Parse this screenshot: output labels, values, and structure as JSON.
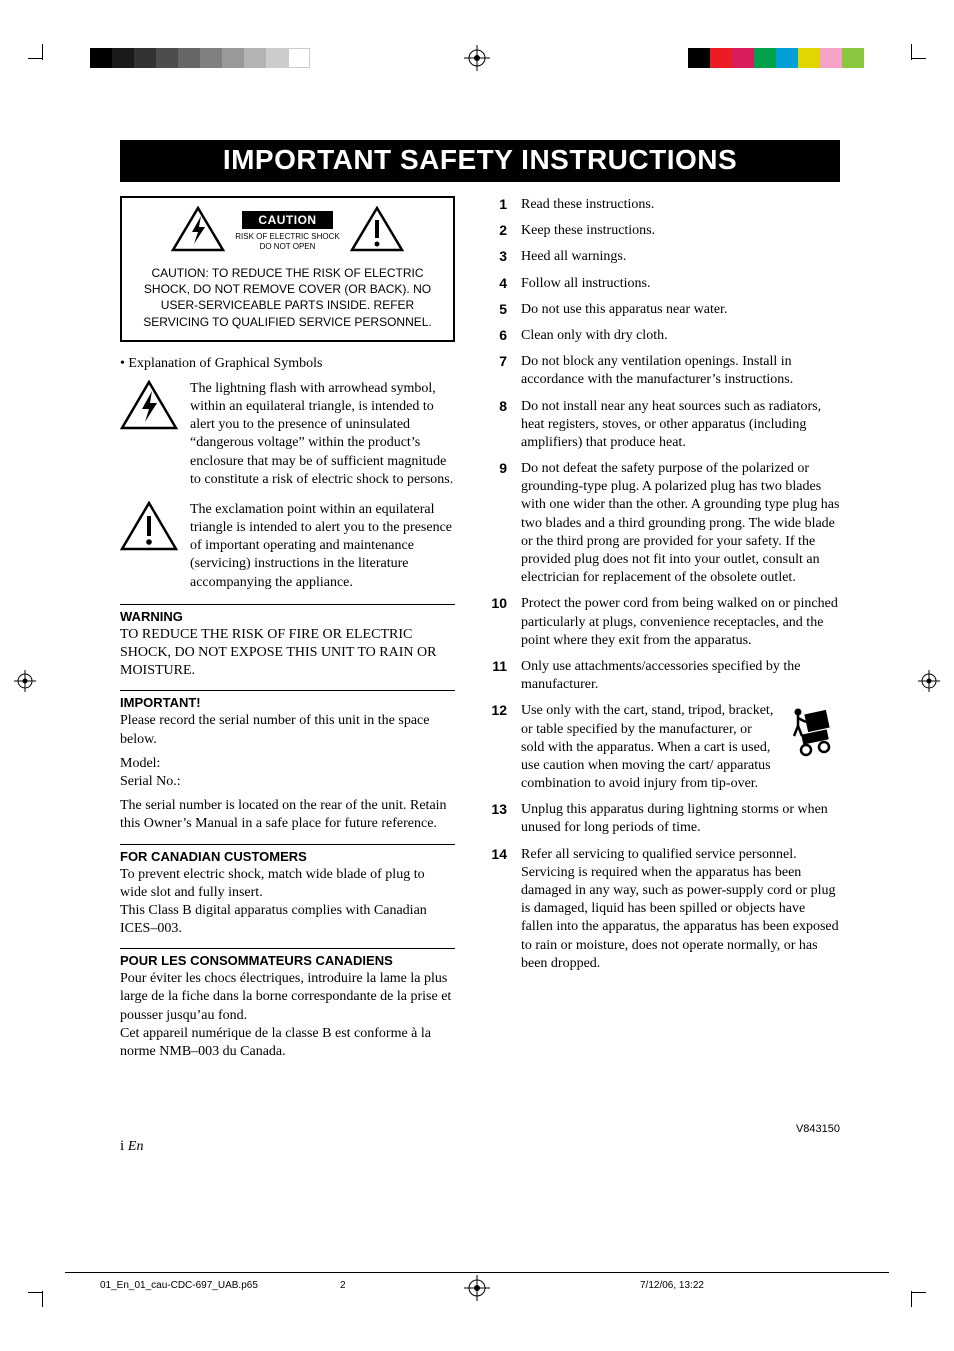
{
  "colorbars": {
    "left_gray": [
      "#000000",
      "#1a1a1a",
      "#333333",
      "#4d4d4d",
      "#666666",
      "#808080",
      "#999999",
      "#b3b3b3",
      "#cccccc",
      "#ffffff"
    ],
    "right_cmyk": [
      "#000000",
      "#ec1c24",
      "#d91c5c",
      "#00a14b",
      "#009fd6",
      "#e2d600",
      "#f5a1c8",
      "#8bc63f"
    ]
  },
  "banner": "IMPORTANT SAFETY INSTRUCTIONS",
  "caution_box": {
    "label": "CAUTION",
    "sub1": "RISK OF ELECTRIC SHOCK",
    "sub2": "DO NOT OPEN",
    "text": "CAUTION:  TO REDUCE THE RISK OF ELECTRIC SHOCK, DO NOT REMOVE COVER (OR BACK). NO USER-SERVICEABLE PARTS INSIDE. REFER SERVICING TO QUALIFIED SERVICE PERSONNEL."
  },
  "explanation_heading": "•  Explanation of Graphical Symbols",
  "symbol_lightning": "The lightning flash with arrowhead symbol, within an equilateral triangle, is intended to alert you to the presence of uninsulated “dangerous voltage” within the product’s enclosure that may be of sufficient magnitude to constitute a risk of electric shock to persons.",
  "symbol_exclaim": "The exclamation point within an equilateral triangle is intended to alert you to the presence of important operating and maintenance (servicing) instructions in the literature accompanying the appliance.",
  "warning": {
    "title": "WARNING",
    "body": "TO REDUCE THE RISK OF FIRE OR ELECTRIC SHOCK, DO NOT EXPOSE THIS UNIT TO RAIN OR MOISTURE."
  },
  "important": {
    "title": "IMPORTANT!",
    "p1": "Please record the serial number of this unit in the space below.",
    "p2": "Model:",
    "p3": "Serial No.:",
    "p4": "The serial number is located on the rear of the unit. Retain this Owner’s Manual in a safe place for future reference."
  },
  "canadian_en": {
    "title": "FOR CANADIAN CUSTOMERS",
    "p1": "To prevent electric shock, match wide blade of plug to wide slot and fully insert.",
    "p2": "This Class B digital apparatus complies with Canadian ICES–003."
  },
  "canadian_fr": {
    "title": "POUR LES CONSOMMATEURS CANADIENS",
    "p1": "Pour éviter les chocs électriques, introduire la lame la plus large de la fiche dans la borne correspondante de la prise et pousser jusqu’au fond.",
    "p2": "Cet appareil numérique de la classe B est conforme à la norme NMB–003 du Canada."
  },
  "instructions": [
    "Read these instructions.",
    "Keep these instructions.",
    "Heed all warnings.",
    "Follow all instructions.",
    "Do not use this apparatus near water.",
    "Clean only with dry cloth.",
    "Do not block any ventilation openings. Install in accordance with the manufacturer’s instructions.",
    "Do not install near any heat sources such as radiators, heat registers, stoves, or other apparatus (including amplifiers) that produce heat.",
    "Do not defeat the safety purpose of the polarized or grounding-type plug. A polarized plug has two blades with one wider than the other. A grounding type plug has two blades and a third grounding prong. The wide blade or the third prong are provided for your safety. If the provided plug does not fit into your outlet, consult an electrician for replacement of the obsolete outlet.",
    "Protect the power cord from being walked on or pinched particularly at plugs, convenience receptacles, and the point where they exit from the apparatus.",
    "Only use attachments/accessories specified by the manufacturer.",
    "Use only with the cart, stand, tripod, bracket, or table specified by the manufacturer, or sold with the apparatus. When a cart is used, use caution when moving the cart/ apparatus combination to avoid injury from tip-over.",
    "Unplug this apparatus during lightning storms or when unused for long periods of time.",
    "Refer all servicing to qualified service personnel. Servicing is required when the apparatus has been damaged in any way, such as power-supply cord or plug is damaged, liquid has been spilled or objects have fallen into the apparatus, the apparatus has been exposed to rain or moisture, does not operate normally, or has been dropped."
  ],
  "docnum": "V843150",
  "pagenum_roman": "i",
  "pagenum_lang": "En",
  "footer": {
    "file": "01_En_01_cau-CDC-697_UAB.p65",
    "page": "2",
    "date": "7/12/06, 13:22"
  }
}
